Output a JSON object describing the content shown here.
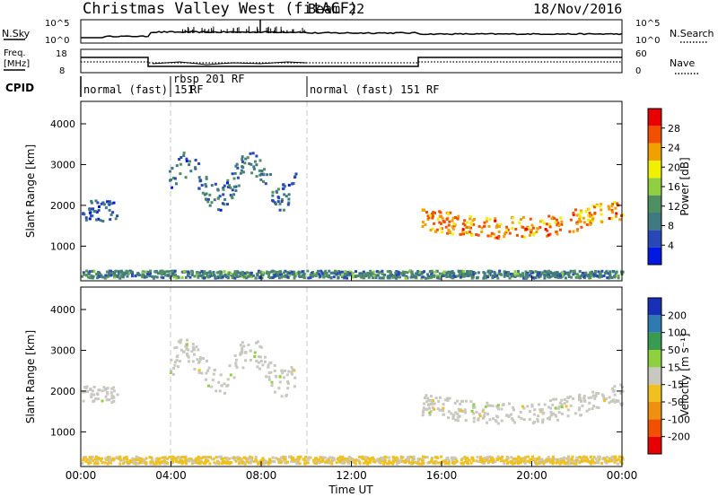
{
  "header": {
    "station": "Christmas Valley West (fitACF)",
    "beam": "Beam 22",
    "date": "18/Nov/2016"
  },
  "strip_panels": {
    "nsky": {
      "left_label": "N.Sky",
      "left_ticks": [
        "10^5",
        "10^0"
      ],
      "right_label": "N.Search",
      "right_ticks": [
        "10^5",
        "10^0"
      ]
    },
    "freq": {
      "left_label_line1": "Freq.",
      "left_label_line2": "[MHz]",
      "left_ticks": [
        "18",
        "8"
      ],
      "right_label": "Nave",
      "right_ticks": [
        "60",
        "0"
      ]
    },
    "cpid": {
      "label": "CPID",
      "segments": [
        "normal (fast) 151",
        "rbsp 201 RF",
        "normal (fast) 151 RF",
        "RF"
      ]
    }
  },
  "colors": {
    "power_scale": [
      "#0018e0",
      "#2848b8",
      "#407a80",
      "#509060",
      "#90d040",
      "#f0f000",
      "#f0a000",
      "#f05000",
      "#e80000"
    ],
    "velocity_scale": [
      "#1830b8",
      "#2f7ab0",
      "#3a9a50",
      "#8ed040",
      "#c8c8c0",
      "#f0c020",
      "#f09010",
      "#f05000",
      "#e80000"
    ]
  },
  "chart_data": [
    {
      "type": "heatmap",
      "panel": "power",
      "ylabel": "Slant Range [km]",
      "yticks": [
        "4000",
        "3000",
        "2000",
        "1000"
      ],
      "ylim": [
        150,
        4550
      ],
      "xlim_hours": [
        0,
        24
      ],
      "colorbar": {
        "label": "Power [dB]",
        "ticks": [
          "28",
          "24",
          "20",
          "16",
          "12",
          "8",
          "4"
        ],
        "range": [
          0,
          32
        ]
      },
      "echo_bands": [
        {
          "name": "ground",
          "x": [
            0,
            24
          ],
          "range_km": [
            200,
            380
          ],
          "value_db": 10
        },
        {
          "name": "early",
          "x": [
            0.0,
            1.6
          ],
          "range_km": [
            1600,
            2100
          ],
          "value_db": 6
        },
        {
          "name": "arc",
          "x": [
            3.9,
            9.5
          ],
          "range_km": [
            2100,
            3200
          ],
          "value_db": 8
        },
        {
          "name": "night",
          "x": [
            15.1,
            24.0
          ],
          "range_km": [
            1300,
            2400
          ],
          "value_db": 24
        }
      ]
    },
    {
      "type": "heatmap",
      "panel": "velocity",
      "ylabel": "Slant Range [km]",
      "yticks": [
        "4000",
        "3000",
        "2000",
        "1000"
      ],
      "ylim": [
        150,
        4550
      ],
      "xlim_hours": [
        0,
        24
      ],
      "xtick_labels": [
        "00:00",
        "04:00",
        "08:00",
        "12:00",
        "16:00",
        "20:00",
        "00:00"
      ],
      "xlabel": "Time UT",
      "colorbar": {
        "label": "Velocity [m s⁻¹]",
        "ticks": [
          "200",
          "100",
          "50",
          "15",
          "-15",
          "-50",
          "-100",
          "-200"
        ],
        "range": [
          -250,
          250
        ]
      },
      "echo_bands": [
        {
          "name": "ground",
          "x": [
            0,
            24
          ],
          "range_km": [
            200,
            380
          ],
          "value_ms": -40
        },
        {
          "name": "early",
          "x": [
            0.0,
            1.6
          ],
          "range_km": [
            1700,
            2100
          ],
          "value_ms": 0
        },
        {
          "name": "arc",
          "x": [
            3.9,
            9.5
          ],
          "range_km": [
            2100,
            3200
          ],
          "value_ms": 0
        },
        {
          "name": "night",
          "x": [
            15.1,
            24.0
          ],
          "range_km": [
            1300,
            2400
          ],
          "value_ms": 0
        }
      ]
    }
  ]
}
